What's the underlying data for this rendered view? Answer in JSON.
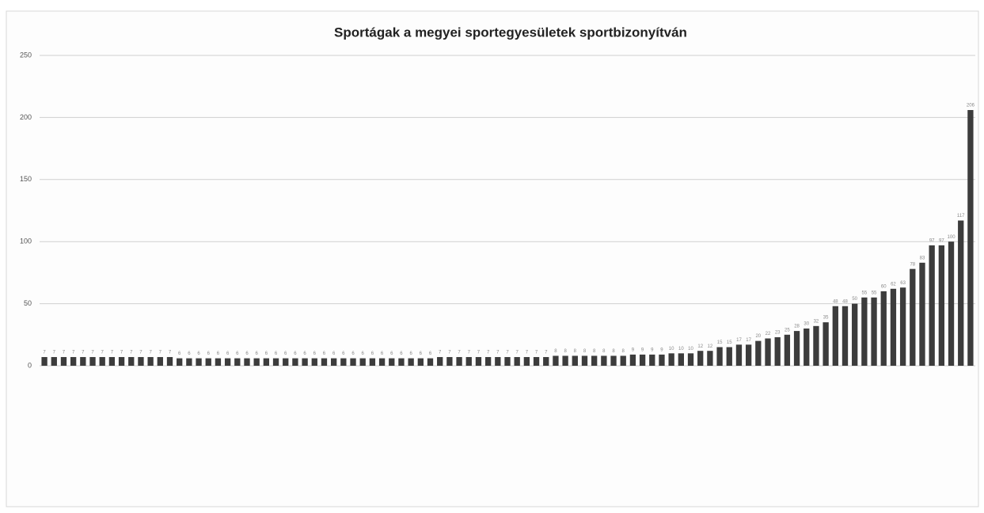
{
  "chart_data": {
    "type": "bar",
    "title": "Sportágak a megyei sportegyesületek sportbizonyítván",
    "categories": [
      null,
      null,
      null,
      null,
      null,
      null,
      null,
      null,
      null,
      null,
      null,
      null,
      null,
      null,
      null,
      null,
      null,
      null,
      null,
      null,
      null,
      null,
      null,
      null,
      null,
      null,
      null,
      null,
      null,
      null,
      null,
      null,
      null,
      null,
      null,
      null,
      null,
      null,
      null,
      null,
      null,
      null,
      null,
      null,
      null,
      null,
      null,
      null,
      null,
      null,
      null,
      null,
      null,
      null,
      null,
      null,
      null,
      null,
      null,
      null,
      null,
      null,
      null,
      null,
      null,
      null,
      null,
      null,
      null,
      null,
      null,
      null,
      null,
      null,
      null,
      null,
      null,
      null,
      null,
      null,
      null,
      null,
      null,
      null,
      null,
      null,
      null,
      null,
      null,
      null,
      null,
      null,
      null,
      null,
      null,
      null,
      null
    ],
    "values": [
      7,
      7,
      7,
      7,
      7,
      7,
      7,
      7,
      7,
      7,
      7,
      7,
      7,
      7,
      6,
      6,
      6,
      6,
      6,
      6,
      6,
      6,
      6,
      6,
      6,
      6,
      6,
      6,
      6,
      6,
      6,
      6,
      6,
      6,
      6,
      6,
      6,
      6,
      6,
      6,
      6,
      7,
      7,
      7,
      7,
      7,
      7,
      7,
      7,
      7,
      7,
      7,
      7,
      8,
      8,
      8,
      8,
      8,
      8,
      8,
      8,
      9,
      9,
      9,
      9,
      10,
      10,
      10,
      12,
      12,
      15,
      15,
      17,
      17,
      20,
      22,
      23,
      25,
      28,
      30,
      32,
      35,
      48,
      48,
      50,
      55,
      55,
      60,
      62,
      63,
      78,
      83,
      97,
      97,
      100,
      117,
      206
    ],
    "color": "#3c3c3c",
    "ylim": [
      0,
      250
    ],
    "yticks": [
      0,
      50,
      100,
      150,
      200,
      250
    ],
    "grid": true
  }
}
